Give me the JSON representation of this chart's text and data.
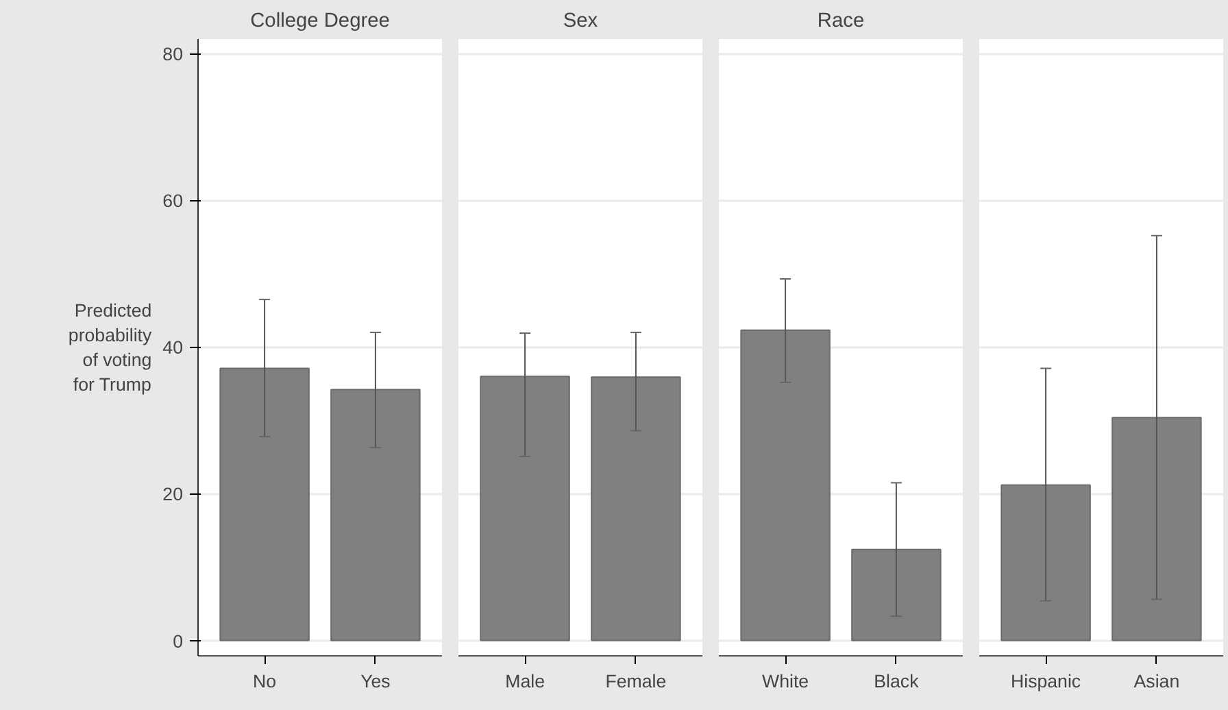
{
  "chart_data": [
    {
      "type": "bar",
      "title": "College Degree",
      "ylabel": "Predicted probability of voting for Trump",
      "categories": [
        "No",
        "Yes"
      ],
      "values": [
        37.1,
        34.2
      ],
      "errors": [
        [
          27.8,
          46.5
        ],
        [
          26.3,
          42.0
        ]
      ],
      "color": "#808080",
      "ylim": [
        -2.1,
        82
      ],
      "yticks": [
        0,
        20,
        40,
        60,
        80
      ],
      "grid": "y"
    },
    {
      "type": "bar",
      "title": "Sex",
      "categories": [
        "Male",
        "Female"
      ],
      "values": [
        36.0,
        35.9
      ],
      "errors": [
        [
          25.1,
          41.9
        ],
        [
          28.6,
          42.0
        ]
      ],
      "color": "#808080",
      "ylim": [
        -2.1,
        82
      ],
      "yticks": [
        0,
        20,
        40,
        60,
        80
      ],
      "grid": "y",
      "tick_labels": "x"
    },
    {
      "type": "bar",
      "title": "Race",
      "categories": [
        "White",
        "Black"
      ],
      "values": [
        42.3,
        12.4
      ],
      "errors": [
        [
          35.2,
          49.3
        ],
        [
          3.3,
          21.5
        ]
      ],
      "color": "#808080",
      "ylim": [
        -2.1,
        82
      ],
      "yticks": [
        0,
        20,
        40,
        60,
        80
      ],
      "grid": "y",
      "tick_labels": "x"
    },
    {
      "type": "bar",
      "categories": [
        "Hispanic",
        "Asian"
      ],
      "values": [
        21.2,
        30.4
      ],
      "errors": [
        [
          5.4,
          37.1
        ],
        [
          5.6,
          55.2
        ]
      ],
      "color": "#808080",
      "ylim": [
        -2.1,
        82
      ],
      "yticks": [
        0,
        20,
        40,
        60,
        80
      ],
      "grid": "y",
      "tick_labels": "x"
    }
  ]
}
